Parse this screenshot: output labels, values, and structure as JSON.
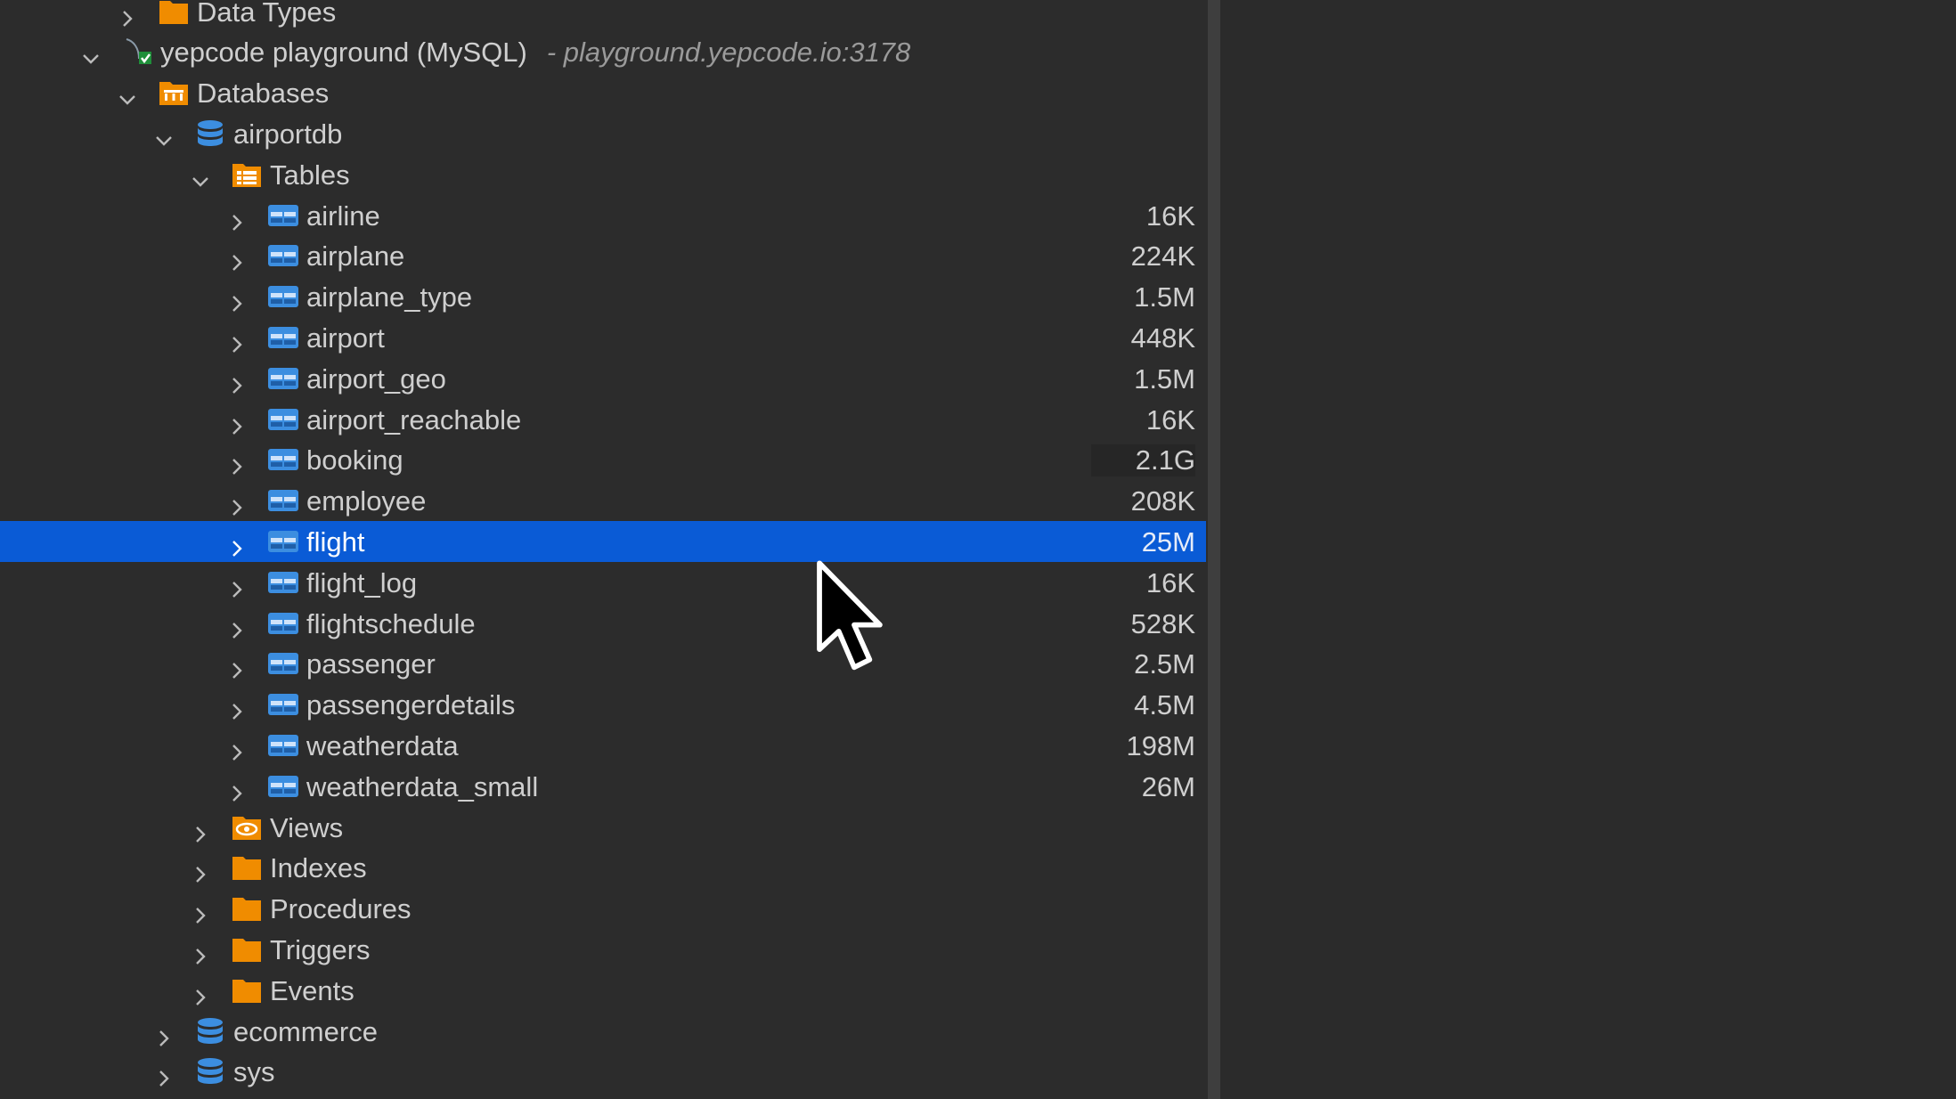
{
  "colors": {
    "background": "#2c2c2c",
    "selection": "#0a5bd6",
    "folder": "#f08c00",
    "database": "#3c8ee0",
    "table": "#3c8ee0",
    "text": "#cfcfcf"
  },
  "tree": [
    {
      "level": 1,
      "expanded": false,
      "icon": "folder-icon",
      "label": "Data Types"
    },
    {
      "level": 0,
      "expanded": true,
      "icon": "connection-icon",
      "label": "yepcode playground (MySQL)",
      "suffix": "- playground.yepcode.io:3178"
    },
    {
      "level": 1,
      "expanded": true,
      "icon": "databases-folder-icon",
      "label": "Databases"
    },
    {
      "level": 2,
      "expanded": true,
      "icon": "database-icon",
      "label": "airportdb"
    },
    {
      "level": 3,
      "expanded": true,
      "icon": "tables-folder-icon",
      "label": "Tables"
    },
    {
      "level": 4,
      "expanded": false,
      "icon": "table-icon",
      "label": "airline",
      "size": "16K"
    },
    {
      "level": 4,
      "expanded": false,
      "icon": "table-icon",
      "label": "airplane",
      "size": "224K"
    },
    {
      "level": 4,
      "expanded": false,
      "icon": "table-icon",
      "label": "airplane_type",
      "size": "1.5M"
    },
    {
      "level": 4,
      "expanded": false,
      "icon": "table-icon",
      "label": "airport",
      "size": "448K"
    },
    {
      "level": 4,
      "expanded": false,
      "icon": "table-icon",
      "label": "airport_geo",
      "size": "1.5M"
    },
    {
      "level": 4,
      "expanded": false,
      "icon": "table-icon",
      "label": "airport_reachable",
      "size": "16K"
    },
    {
      "level": 4,
      "expanded": false,
      "icon": "table-icon",
      "label": "booking",
      "size": "2.1G",
      "size_shaded": true
    },
    {
      "level": 4,
      "expanded": false,
      "icon": "table-icon",
      "label": "employee",
      "size": "208K"
    },
    {
      "level": 4,
      "expanded": false,
      "icon": "table-icon",
      "label": "flight",
      "size": "25M",
      "selected": true
    },
    {
      "level": 4,
      "expanded": false,
      "icon": "table-icon",
      "label": "flight_log",
      "size": "16K"
    },
    {
      "level": 4,
      "expanded": false,
      "icon": "table-icon",
      "label": "flightschedule",
      "size": "528K"
    },
    {
      "level": 4,
      "expanded": false,
      "icon": "table-icon",
      "label": "passenger",
      "size": "2.5M"
    },
    {
      "level": 4,
      "expanded": false,
      "icon": "table-icon",
      "label": "passengerdetails",
      "size": "4.5M"
    },
    {
      "level": 4,
      "expanded": false,
      "icon": "table-icon",
      "label": "weatherdata",
      "size": "198M"
    },
    {
      "level": 4,
      "expanded": false,
      "icon": "table-icon",
      "label": "weatherdata_small",
      "size": "26M"
    },
    {
      "level": 3,
      "expanded": false,
      "icon": "views-icon",
      "label": "Views"
    },
    {
      "level": 3,
      "expanded": false,
      "icon": "folder-icon",
      "label": "Indexes"
    },
    {
      "level": 3,
      "expanded": false,
      "icon": "folder-icon",
      "label": "Procedures"
    },
    {
      "level": 3,
      "expanded": false,
      "icon": "folder-icon",
      "label": "Triggers"
    },
    {
      "level": 3,
      "expanded": false,
      "icon": "folder-icon",
      "label": "Events"
    },
    {
      "level": 2,
      "expanded": false,
      "icon": "database-icon",
      "label": "ecommerce"
    },
    {
      "level": 2,
      "expanded": false,
      "icon": "database-icon",
      "label": "sys"
    }
  ]
}
